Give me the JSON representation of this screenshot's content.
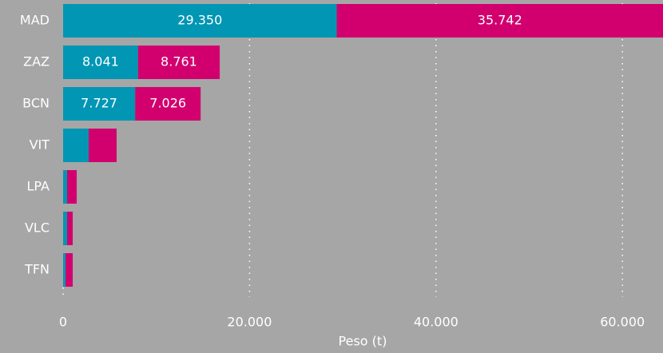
{
  "chart_data": {
    "type": "stacked-barh",
    "categories": [
      "MAD",
      "ZAZ",
      "BCN",
      "VIT",
      "LPA",
      "VLC",
      "TFN"
    ],
    "series": [
      {
        "color": "#0096b4",
        "values": [
          29350,
          8041,
          7727,
          2740,
          430,
          430,
          260
        ],
        "value_labels": [
          "29.350",
          "8.041",
          "7.727",
          null,
          null,
          null,
          null
        ]
      },
      {
        "color": "#d2006e",
        "values": [
          35742,
          8761,
          7026,
          3000,
          1030,
          600,
          770
        ],
        "value_labels": [
          "35.742",
          "8.761",
          "7.026",
          null,
          null,
          null,
          null
        ]
      }
    ],
    "xlim": [
      0,
      64350
    ],
    "xticks": [
      0,
      {
        "value": 20000,
        "label": "20.000"
      },
      {
        "value": 40000,
        "label": "40.000"
      },
      {
        "value": 60000,
        "label": "60.000"
      }
    ],
    "xlabel": "Peso (t)",
    "grid": true
  }
}
